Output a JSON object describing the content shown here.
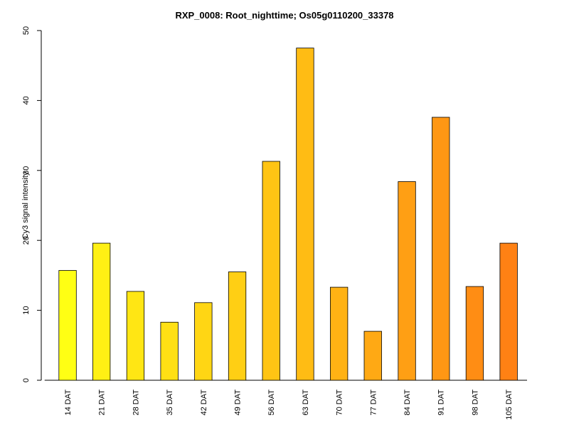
{
  "chart_data": {
    "type": "bar",
    "title": "RXP_0008: Root_nighttime; Os05g0110200_33378",
    "xlabel": "",
    "ylabel": "Cy3 signal intensity",
    "ylim": [
      0,
      50
    ],
    "yticks": [
      0,
      10,
      20,
      30,
      40,
      50
    ],
    "grid": false,
    "legend": "none",
    "categories": [
      "14 DAT",
      "21 DAT",
      "28 DAT",
      "35 DAT",
      "42 DAT",
      "49 DAT",
      "56 DAT",
      "63 DAT",
      "70 DAT",
      "77 DAT",
      "84 DAT",
      "91 DAT",
      "98 DAT",
      "105 DAT"
    ],
    "values": [
      15.7,
      19.6,
      12.7,
      8.3,
      11.1,
      15.5,
      31.3,
      47.5,
      13.3,
      7.0,
      28.4,
      37.6,
      13.4,
      19.6
    ],
    "colors": [
      "#ffff14",
      "#fff014",
      "#ffe614",
      "#ffe014",
      "#ffd614",
      "#ffcf14",
      "#ffc414",
      "#ffbc14",
      "#ffb214",
      "#ffa914",
      "#ff9f14",
      "#ff9714",
      "#ff8d14",
      "#ff8114"
    ]
  }
}
